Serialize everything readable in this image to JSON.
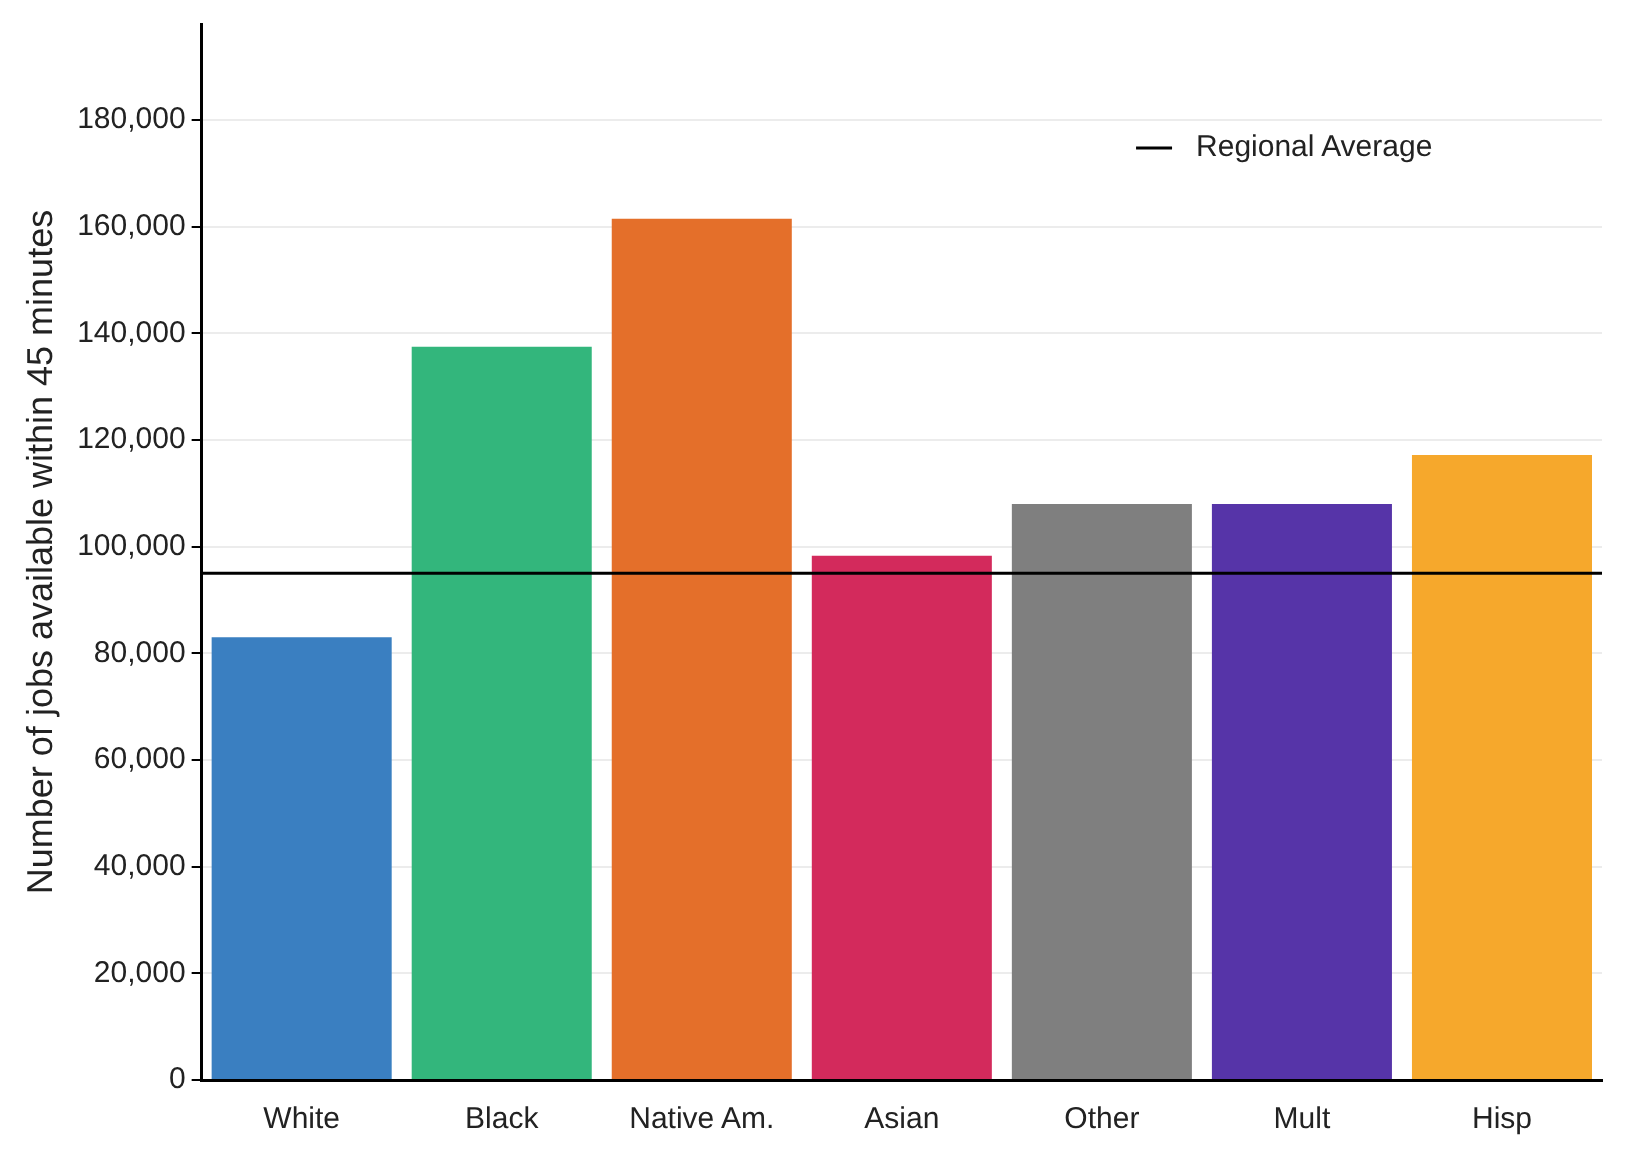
{
  "chart_data": {
    "type": "bar",
    "ylabel": "Number of jobs available within 45 minutes",
    "categories": [
      "White",
      "Black",
      "Native Am.",
      "Asian",
      "Other",
      "Mult",
      "Hisp"
    ],
    "values": [
      83000,
      137500,
      161500,
      98300,
      108000,
      108000,
      117200
    ],
    "colors": [
      "#3a7fc1",
      "#33b67c",
      "#e46f2a",
      "#d32a5c",
      "#7f7f7f",
      "#5634a8",
      "#f6a82c"
    ],
    "ylim": [
      0,
      198000
    ],
    "yticks": [
      0,
      {
        "value": 20000,
        "label": "20,000"
      },
      {
        "value": 40000,
        "label": "40,000"
      },
      {
        "value": 60000,
        "label": "60,000"
      },
      {
        "value": 80000,
        "label": "80,000"
      },
      {
        "value": 100000,
        "label": "100,000"
      },
      {
        "value": 120000,
        "label": "120,000"
      },
      {
        "value": 140000,
        "label": "140,000"
      },
      {
        "value": 160000,
        "label": "160,000"
      },
      {
        "value": 180000,
        "label": "180,000"
      }
    ],
    "grid": "y",
    "legend": "top right",
    "ref_lines": [
      {
        "axis": "y",
        "value": 95000,
        "label": "Regional Average",
        "color": "#000000"
      }
    ]
  }
}
